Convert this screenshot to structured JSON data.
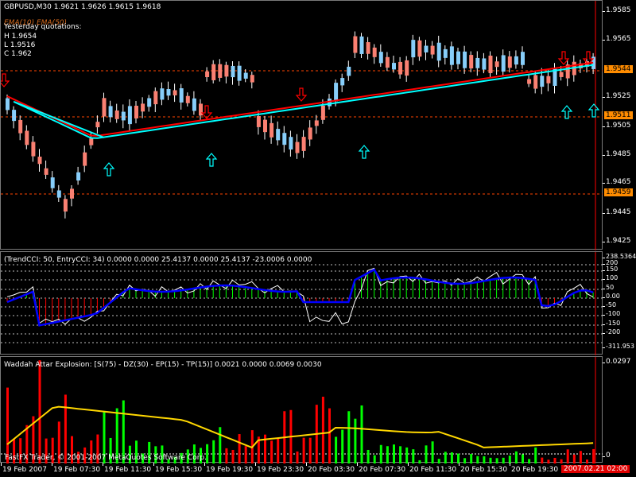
{
  "price_pane": {
    "header": "GBPUSD,M30  1.9621 1.9626 1.9615 1.9618",
    "ma_label": "EMA(10) EMA(50)",
    "yesterday_label": "Yesterday quotations:",
    "high": "H 1.9654",
    "low": "L 1.9516",
    "close": "C 1.962",
    "scale": [
      "1.9585",
      "1.9565",
      "1.9545",
      "1.9525",
      "1.9505",
      "1.9485",
      "1.9465",
      "1.9445",
      "1.9425"
    ],
    "level_tags": [
      "1.9544",
      "1.9511",
      "1.9459"
    ],
    "colors": {
      "bull": "#87cefa",
      "bear": "#fa8072",
      "ema10": "#ff0000",
      "ema50": "#00ffff",
      "level": "#ff4500",
      "arrow": "#00ffff",
      "arrow_down": "#ff0000"
    }
  },
  "cci_pane": {
    "header": "(TrendCCI: 50, EntryCCI: 34)  0.0000 0.0000 25.4137 0.0000 25.4137 -23.0006 0.0000",
    "scale": [
      "238.5364",
      "200",
      "150",
      "100",
      "50",
      "0.00",
      "-50",
      "-100",
      "-150",
      "-200",
      "-311.953"
    ],
    "colors": {
      "trend": "#0000ff",
      "entry": "#ffffff",
      "pos_hist": "#00ff00",
      "neg_hist": "#ff0000"
    }
  },
  "waddah_pane": {
    "header": "Waddah Attar Explosion: [S(75) - DZ(30) - EP(15) - TP(15)]  0.0021 0.0000 0.0069 0.0030",
    "scale": [
      "0.0297",
      "0"
    ],
    "colors": {
      "up": "#00ff00",
      "down": "#ff0000",
      "explosion": "#ffd700",
      "deadzone": "#ffffff"
    }
  },
  "time_axis": {
    "labels": [
      "19 Feb 2007",
      "19 Feb 07:30",
      "19 Feb 11:30",
      "19 Feb 15:30",
      "19 Feb 19:30",
      "19 Feb 23:30",
      "20 Feb 03:30",
      "20 Feb 07:30",
      "20 Feb 11:30",
      "20 Feb 15:30",
      "20 Feb 19:30"
    ],
    "cursor": "2007.02.21 02:00"
  },
  "copyright": "FastFX Trader, © 2001-2007 MetaQuotes Software Corp."
}
